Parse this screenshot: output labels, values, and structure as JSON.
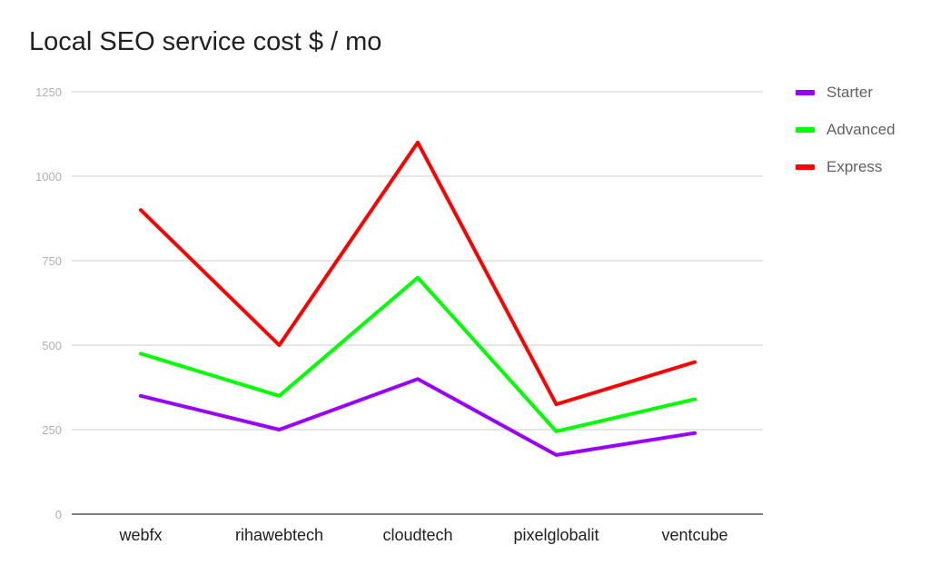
{
  "chart_data": {
    "type": "line",
    "title": "Local SEO service cost $ / mo",
    "xlabel": "",
    "ylabel": "",
    "categories": [
      "webfx",
      "rihawebtech",
      "cloudtech",
      "pixelglobalit",
      "ventcube"
    ],
    "ylim": [
      0,
      1250
    ],
    "yticks": [
      0,
      250,
      500,
      750,
      1000,
      1250
    ],
    "grid": true,
    "legend_position": "right",
    "series": [
      {
        "name": "Starter",
        "color": "#9900ff",
        "values": [
          350,
          250,
          400,
          175,
          240
        ]
      },
      {
        "name": "Advanced",
        "color": "#00ff00",
        "values": [
          475,
          350,
          700,
          245,
          340
        ]
      },
      {
        "name": "Express",
        "color": "#ff0000",
        "values": [
          900,
          500,
          1100,
          325,
          450
        ]
      }
    ]
  }
}
